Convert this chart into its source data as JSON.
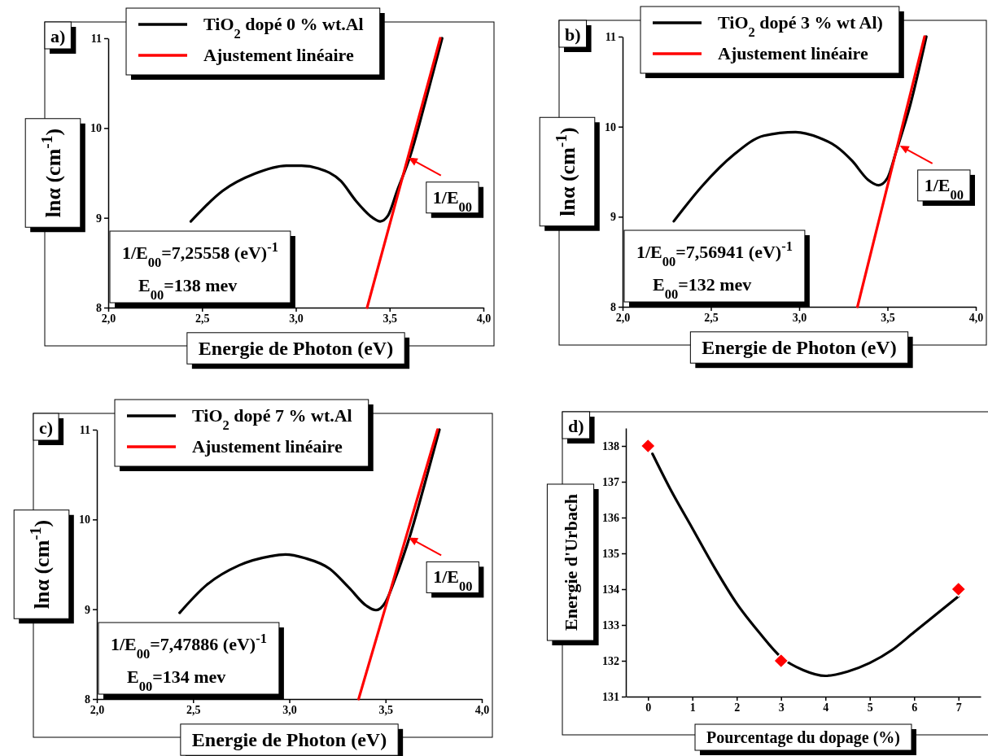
{
  "chart_data": [
    {
      "type": "line",
      "title": "a)",
      "xlabel": "Energie de Photon (eV)",
      "ylabel": "lnα (cm$^{-1}$)",
      "xlim": [
        2,
        4
      ],
      "xticks": [
        {
          "value": 2,
          "label": "2,0"
        },
        {
          "value": 2.5,
          "label": "2,5"
        },
        {
          "value": 3,
          "label": "3,0"
        },
        {
          "value": 3.5,
          "label": "3,5"
        },
        {
          "value": 4,
          "label": "4,0"
        }
      ],
      "ylim": [
        8,
        11
      ],
      "yticks": [
        8,
        9,
        10,
        11
      ],
      "legend": "top",
      "series": [
        {
          "name": "TiO$_{2}$ dopé 0 % wt.Al",
          "color": "#000000",
          "x": [
            2.44,
            2.61,
            2.78,
            2.95,
            3.03,
            3.12,
            3.24,
            3.32,
            3.41,
            3.45,
            3.49,
            3.54,
            3.61,
            3.69,
            3.78
          ],
          "values": [
            8.96,
            9.3,
            9.49,
            9.58,
            9.58,
            9.55,
            9.41,
            9.19,
            9.0,
            8.96,
            9.02,
            9.3,
            9.69,
            10.29,
            11.0
          ]
        },
        {
          "name": "Ajustement linéaire",
          "color": "#ff0000",
          "x": [
            3.38,
            3.77
          ],
          "values": [
            8,
            11
          ]
        }
      ],
      "annotations": [
        "1/E$_{00}$=7,25558 (eV)$^{-1}$",
        "E$_{00}$=138 mev",
        {
          "text": "1/E$_{00}$",
          "x": 3.6,
          "y": 9.67
        }
      ]
    },
    {
      "type": "line",
      "title": "b)",
      "xlabel": "Energie de Photon (eV)",
      "ylabel": "lnα (cm$^{-1}$)",
      "xlim": [
        2,
        4
      ],
      "xticks": [
        {
          "value": 2,
          "label": "2,0"
        },
        {
          "value": 2.5,
          "label": "2,5"
        },
        {
          "value": 3,
          "label": "3,0"
        },
        {
          "value": 3.5,
          "label": "3,5"
        },
        {
          "value": 4,
          "label": "4,0"
        }
      ],
      "ylim": [
        8,
        11
      ],
      "yticks": [
        8,
        9,
        10,
        11
      ],
      "legend": "top",
      "series": [
        {
          "name": "TiO$_{2}$ dopé 3 % wt Al)",
          "color": "#000000",
          "x": [
            2.29,
            2.45,
            2.63,
            2.8,
            2.98,
            3.11,
            3.21,
            3.3,
            3.39,
            3.45,
            3.5,
            3.55,
            3.63,
            3.72
          ],
          "values": [
            8.95,
            9.34,
            9.69,
            9.9,
            9.94,
            9.88,
            9.78,
            9.62,
            9.41,
            9.35,
            9.43,
            9.73,
            10.25,
            11.0
          ]
        },
        {
          "name": "Ajustement linéaire",
          "color": "#ff0000",
          "x": [
            3.33,
            3.71
          ],
          "values": [
            8,
            11
          ]
        }
      ],
      "annotations": [
        "1/E$_{00}$=7,56941 (eV)$^{-1}$",
        "E$_{00}$=132 mev",
        {
          "text": "1/E$_{00}$",
          "x": 3.57,
          "y": 9.79
        }
      ]
    },
    {
      "type": "line",
      "title": "c)",
      "xlabel": "Energie de Photon (eV)",
      "ylabel": "lnα (cm$^{-1}$)",
      "xlim": [
        2,
        4
      ],
      "xticks": [
        {
          "value": 2,
          "label": "2,0"
        },
        {
          "value": 2.5,
          "label": "2,5"
        },
        {
          "value": 3,
          "label": "3,0"
        },
        {
          "value": 3.5,
          "label": "3,5"
        },
        {
          "value": 4,
          "label": "4,0"
        }
      ],
      "ylim": [
        8,
        11
      ],
      "yticks": [
        8,
        9,
        10,
        11
      ],
      "legend": "top",
      "series": [
        {
          "name": "TiO$_{2}$ dopé 7 % wt.Al",
          "color": "#000000",
          "x": [
            2.43,
            2.57,
            2.74,
            2.9,
            2.98,
            3.08,
            3.21,
            3.31,
            3.4,
            3.45,
            3.5,
            3.55,
            3.63,
            3.7,
            3.78
          ],
          "values": [
            8.96,
            9.27,
            9.49,
            9.59,
            9.61,
            9.57,
            9.45,
            9.24,
            9.04,
            8.99,
            9.08,
            9.34,
            9.84,
            10.37,
            11.0
          ]
        },
        {
          "name": "Ajustement linéaire",
          "color": "#ff0000",
          "x": [
            3.36,
            3.77
          ],
          "values": [
            8,
            11
          ]
        }
      ],
      "annotations": [
        "1/E$_{00}$=7,47886 (eV)$^{-1}$",
        "E$_{00}$=134 mev",
        {
          "text": "1/E$_{00}$",
          "x": 3.62,
          "y": 9.8
        }
      ]
    },
    {
      "type": "line",
      "title": "d)",
      "xlabel": "Pourcentage du dopage (%)",
      "ylabel": "Energie d'Urbach",
      "xlim": [
        -0.5,
        7.5
      ],
      "xticks": [
        0,
        1,
        2,
        3,
        4,
        5,
        6,
        7
      ],
      "ylim": [
        131,
        138.5
      ],
      "yticks": [
        131,
        132,
        133,
        134,
        135,
        136,
        137,
        138
      ],
      "series": [
        {
          "color": "#000000",
          "x": [
            0.1,
            0.5,
            1,
            1.5,
            2,
            2.5,
            3,
            3.5,
            4,
            4.5,
            5,
            5.5,
            6,
            6.5,
            7
          ],
          "values": [
            137.78,
            136.8,
            135.7,
            134.6,
            133.6,
            132.8,
            132.1,
            131.74,
            131.58,
            131.7,
            131.94,
            132.3,
            132.8,
            133.3,
            133.8
          ]
        },
        {
          "type": "scatter",
          "color": "#ff0000",
          "marker": "diamond",
          "x": [
            0,
            3,
            7
          ],
          "values": [
            138,
            132,
            134
          ]
        }
      ]
    }
  ]
}
